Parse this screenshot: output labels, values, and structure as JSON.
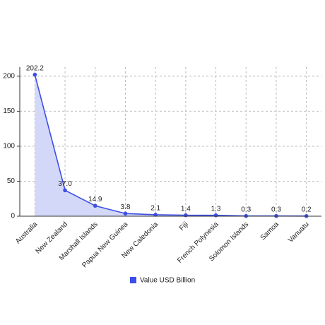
{
  "chart_data": {
    "type": "line",
    "categories": [
      "Australia",
      "New Zealand",
      "Marshall Islands",
      "Papua New Guinea",
      "New Caledonia",
      "Fiji",
      "French Polynesia",
      "Solomon Islands",
      "Samoa",
      "Vanuatu"
    ],
    "series": [
      {
        "name": "Value USD Billion",
        "color": "#3d4fe6",
        "fill": "#d3d8f8",
        "values": [
          202.2,
          37.0,
          14.9,
          3.8,
          2.1,
          1.4,
          1.3,
          0.3,
          0.3,
          0.2
        ],
        "value_labels": [
          "202.2",
          "37.0",
          "14.9",
          "3.8",
          "2.1",
          "1.4",
          "1.3",
          "0.3",
          "0.3",
          "0.2"
        ]
      }
    ],
    "ylim": [
      0,
      213
    ],
    "yticks": [
      0,
      50,
      100,
      150,
      200
    ],
    "grid": true,
    "legend": "bottom"
  }
}
